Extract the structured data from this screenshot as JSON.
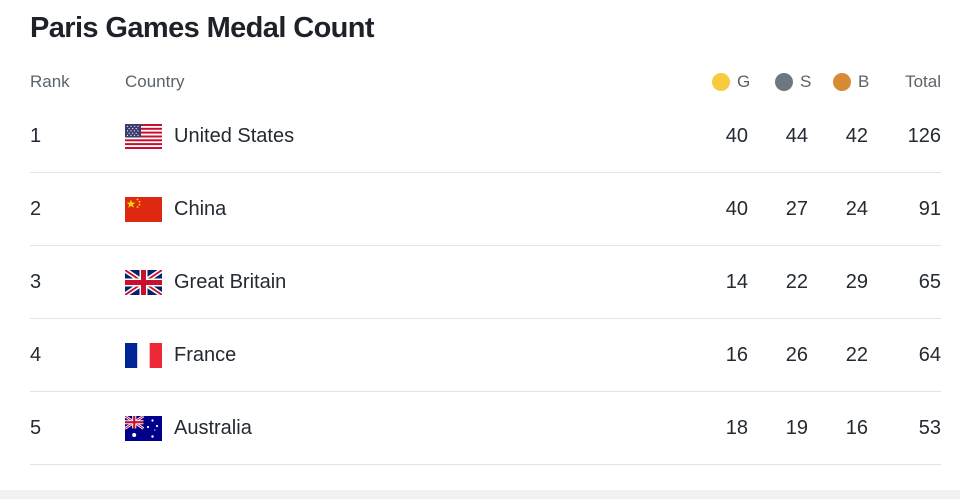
{
  "title": "Paris Games Medal Count",
  "colors": {
    "gold": "#f7cb3d",
    "silver": "#6e7780",
    "bronze": "#d78b35"
  },
  "headers": {
    "rank": "Rank",
    "country": "Country",
    "gold": "G",
    "silver": "S",
    "bronze": "B",
    "total": "Total"
  },
  "rows": [
    {
      "rank": "1",
      "country": "United States",
      "flag": "us-flag-icon",
      "gold": "40",
      "silver": "44",
      "bronze": "42",
      "total": "126"
    },
    {
      "rank": "2",
      "country": "China",
      "flag": "china-flag-icon",
      "gold": "40",
      "silver": "27",
      "bronze": "24",
      "total": "91"
    },
    {
      "rank": "3",
      "country": "Great Britain",
      "flag": "uk-flag-icon",
      "gold": "14",
      "silver": "22",
      "bronze": "29",
      "total": "65"
    },
    {
      "rank": "4",
      "country": "France",
      "flag": "france-flag-icon",
      "gold": "16",
      "silver": "26",
      "bronze": "22",
      "total": "64"
    },
    {
      "rank": "5",
      "country": "Australia",
      "flag": "australia-flag-icon",
      "gold": "18",
      "silver": "19",
      "bronze": "16",
      "total": "53"
    }
  ]
}
